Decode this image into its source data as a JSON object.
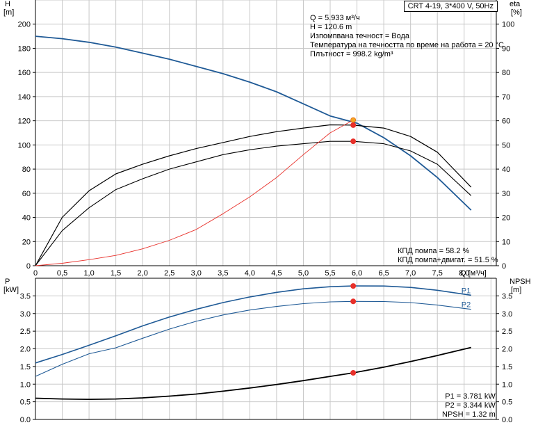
{
  "title": "CRT 4-19, 3*400 V, 50Hz",
  "duty_point": {
    "lines": [
      "Q = 5.933 м³/ч",
      "H = 120.6 m",
      "Изпомпвана течност = Вода",
      "Температура на течността по време на работа = 20 °C",
      "Плътност = 998.2 kg/m³"
    ]
  },
  "efficiency_info": {
    "lines": [
      "КПД помпа = 58.2 %",
      "КПД помпа+двигат. = 51.5 %"
    ]
  },
  "power_info": {
    "lines": [
      "P1 = 3.781 kW",
      "P2 = 3.344 kW",
      "NPSH = 1.32 m"
    ]
  },
  "colors": {
    "blue": "#1f5a96",
    "red": "#e8302a",
    "orange": "#f5a623",
    "grid": "#c8c8c8",
    "black": "#000000"
  },
  "chart_data": [
    {
      "type": "line",
      "panel": "head-efficiency",
      "xlabel": "Q [м³/ч]",
      "x_ticks": [
        "0",
        "0,5",
        "1,0",
        "1,5",
        "2,0",
        "2,5",
        "3,0",
        "3,5",
        "4,0",
        "4,5",
        "5,0",
        "5,5",
        "6,0",
        "6,5",
        "7,0",
        "7,5",
        "8,0"
      ],
      "xlim": [
        0,
        8.6
      ],
      "ylabel_left": "H [m]",
      "ylabel_left_unit": "[m]",
      "ylabel_left_name": "H",
      "ylim_left": [
        0,
        220
      ],
      "y_ticks_left": [
        "0",
        "20",
        "40",
        "60",
        "80",
        "100",
        "120",
        "140",
        "160",
        "180",
        "200"
      ],
      "ylabel_right_name": "eta",
      "ylabel_right_unit": "[%]",
      "ylim_right": [
        0,
        110
      ],
      "y_ticks_right": [
        "0",
        "10",
        "20",
        "30",
        "40",
        "50",
        "60",
        "70",
        "80",
        "90",
        "100"
      ],
      "grid": true,
      "series": [
        {
          "role": "head-curve",
          "axis": "left",
          "color": "blue",
          "x": [
            0,
            0.5,
            1.0,
            1.5,
            2.0,
            2.5,
            3.0,
            3.5,
            4.0,
            4.5,
            5.0,
            5.5,
            6.0,
            6.5,
            7.0,
            7.5,
            8.13
          ],
          "y": [
            190,
            188,
            185,
            181,
            176,
            171,
            165,
            159,
            152,
            144,
            134,
            124,
            118,
            106,
            91,
            73,
            46
          ]
        },
        {
          "role": "pump-efficiency",
          "axis": "right",
          "color": "black",
          "x": [
            0,
            0.5,
            1.0,
            1.5,
            2.0,
            2.5,
            3.0,
            3.5,
            4.0,
            4.5,
            5.0,
            5.5,
            5.93,
            6.5,
            7.0,
            7.5,
            8.13
          ],
          "y": [
            0,
            20,
            31,
            38,
            42,
            45.5,
            48.5,
            51,
            53.5,
            55.5,
            57,
            58.3,
            58.2,
            57,
            53.5,
            47,
            32.5
          ]
        },
        {
          "role": "total-efficiency",
          "axis": "right",
          "color": "black",
          "x": [
            0,
            0.5,
            1.0,
            1.5,
            2.0,
            2.5,
            3.0,
            3.5,
            4.0,
            4.5,
            5.0,
            5.5,
            5.93,
            6.5,
            7.0,
            7.5,
            8.13
          ],
          "y": [
            0,
            14.5,
            24,
            31.5,
            36,
            40,
            43,
            46,
            48,
            49.5,
            50.5,
            51.5,
            51.5,
            50.5,
            47.5,
            42,
            29
          ]
        },
        {
          "role": "system-curve",
          "axis": "left",
          "color": "red",
          "x": [
            0,
            0.5,
            1.0,
            1.5,
            2.0,
            2.5,
            3.0,
            3.5,
            4.0,
            4.5,
            5.0,
            5.5,
            5.93
          ],
          "y": [
            0,
            2,
            5,
            8.5,
            14,
            21,
            30,
            43,
            57,
            73,
            92,
            110,
            120.6
          ]
        }
      ],
      "markers": [
        {
          "x": 5.93,
          "y": 120.6,
          "axis": "left",
          "color": "orange"
        },
        {
          "x": 5.93,
          "y": 116.4,
          "axis": "left",
          "color": "red"
        },
        {
          "x": 5.93,
          "y": 103,
          "axis": "left",
          "color": "red"
        }
      ]
    },
    {
      "type": "line",
      "panel": "power-npsh",
      "xlim": [
        0,
        8.6
      ],
      "ylabel_left_name": "P",
      "ylabel_left_unit": "[kW]",
      "ylim_left": [
        0,
        4.0
      ],
      "y_ticks_left": [
        "0.0",
        "0.5",
        "1.0",
        "1.5",
        "2.0",
        "2.5",
        "3.0",
        "3.5"
      ],
      "ylabel_right_name": "NPSH",
      "ylabel_right_unit": "[m]",
      "ylim_right": [
        0,
        4.0
      ],
      "y_ticks_right": [
        "0.0",
        "0.5",
        "1.0",
        "1.5",
        "2.0",
        "2.5",
        "3.0",
        "3.5"
      ],
      "grid": true,
      "series": [
        {
          "name": "P1",
          "axis": "left",
          "color": "blue",
          "x": [
            0,
            0.5,
            1.0,
            1.5,
            2.0,
            2.5,
            3.0,
            3.5,
            4.0,
            4.5,
            5.0,
            5.5,
            5.93,
            6.5,
            7.0,
            7.5,
            8.13
          ],
          "y": [
            1.6,
            1.84,
            2.1,
            2.37,
            2.65,
            2.9,
            3.12,
            3.31,
            3.47,
            3.6,
            3.7,
            3.76,
            3.781,
            3.78,
            3.74,
            3.66,
            3.52
          ]
        },
        {
          "name": "P2",
          "axis": "left",
          "color": "blue",
          "x": [
            0,
            0.5,
            1.0,
            1.5,
            2.0,
            2.5,
            3.0,
            3.5,
            4.0,
            4.5,
            5.0,
            5.5,
            5.93,
            6.5,
            7.0,
            7.5,
            8.13
          ],
          "y": [
            1.22,
            1.56,
            1.86,
            2.03,
            2.3,
            2.56,
            2.78,
            2.96,
            3.1,
            3.2,
            3.28,
            3.33,
            3.344,
            3.34,
            3.31,
            3.24,
            3.12
          ]
        },
        {
          "role": "npsh",
          "axis": "right",
          "color": "black",
          "x": [
            0,
            0.5,
            1.0,
            1.5,
            2.0,
            2.5,
            3.0,
            3.5,
            4.0,
            4.5,
            5.0,
            5.5,
            5.93,
            6.5,
            7.0,
            7.5,
            8.13
          ],
          "y": [
            0.6,
            0.58,
            0.57,
            0.58,
            0.61,
            0.66,
            0.72,
            0.8,
            0.89,
            0.99,
            1.1,
            1.22,
            1.32,
            1.48,
            1.64,
            1.81,
            2.04
          ]
        }
      ],
      "markers": [
        {
          "x": 5.93,
          "y": 3.781,
          "axis": "left",
          "color": "red"
        },
        {
          "x": 5.93,
          "y": 3.344,
          "axis": "left",
          "color": "red"
        },
        {
          "x": 5.93,
          "y": 1.32,
          "axis": "right",
          "color": "red"
        }
      ]
    }
  ]
}
